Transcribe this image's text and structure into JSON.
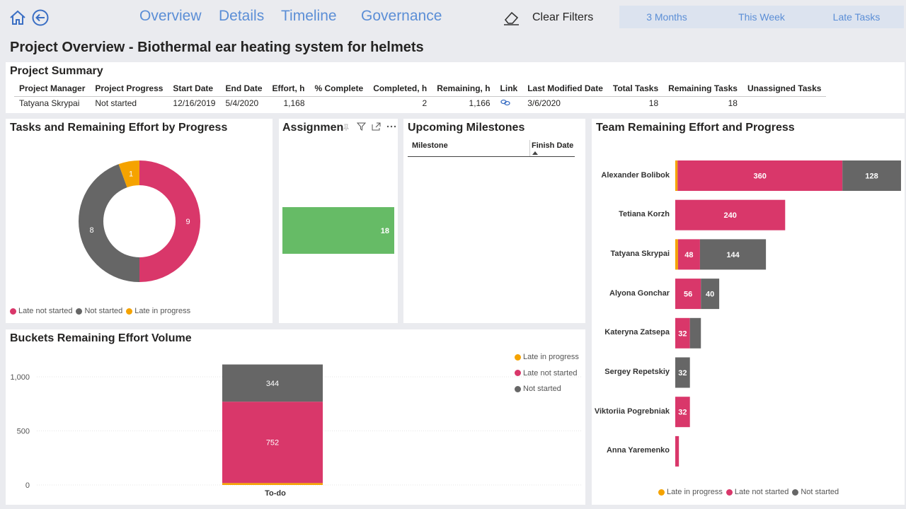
{
  "nav": {
    "tabs": [
      {
        "label": "Overview"
      },
      {
        "label": "Details"
      },
      {
        "label": "Timeline"
      },
      {
        "label": "Governance"
      }
    ],
    "clear_filters": "Clear Filters",
    "segments": [
      "3 Months",
      "This Week",
      "Late Tasks"
    ]
  },
  "page_title": "Project Overview - Biothermal ear heating system for helmets",
  "summary": {
    "title": "Project Summary",
    "columns": [
      "Project Manager",
      "Project Progress",
      "Start Date",
      "End Date",
      "Effort, h",
      "% Complete",
      "Completed, h",
      "Remaining, h",
      "Link",
      "Last Modified Date",
      "Total Tasks",
      "Remaining Tasks",
      "Unassigned Tasks"
    ],
    "row": {
      "manager": "Tatyana Skrypai",
      "progress": "Not started",
      "start": "12/16/2019",
      "end": "5/4/2020",
      "effort": "1,168",
      "pct": "",
      "completed": "2",
      "remaining": "1,166",
      "modified": "3/6/2020",
      "total": "18",
      "remaining_tasks": "18",
      "unassigned": ""
    }
  },
  "colors": {
    "late_in_progress": "#f5a300",
    "late_not_started": "#d9376a",
    "not_started": "#666666",
    "assign_green": "#66bb66",
    "nav_blue": "#5b8ed6"
  },
  "donut": {
    "title": "Tasks and Remaining Effort by Progress",
    "legend": [
      "Late not started",
      "Not started",
      "Late in progress"
    ],
    "chart_data": {
      "type": "pie",
      "categories": [
        "Late not started",
        "Not started",
        "Late in progress"
      ],
      "values": [
        9,
        8,
        1
      ]
    }
  },
  "assignments": {
    "title": "Assignmen",
    "value": "18",
    "chart_data": {
      "type": "bar",
      "values": [
        18
      ]
    }
  },
  "milestones": {
    "title": "Upcoming Milestones",
    "columns": [
      "Milestone",
      "Finish Date"
    ]
  },
  "buckets": {
    "title": "Buckets Remaining Effort Volume",
    "legend": [
      "Late in progress",
      "Late not started",
      "Not started"
    ],
    "chart_data": {
      "type": "bar",
      "categories": [
        "To-do"
      ],
      "series": [
        {
          "name": "Late in progress",
          "values": [
            18
          ]
        },
        {
          "name": "Late not started",
          "values": [
            752
          ]
        },
        {
          "name": "Not started",
          "values": [
            344
          ]
        }
      ],
      "yticks": [
        "0",
        "500",
        "1,000"
      ],
      "ylim": [
        0,
        1200
      ]
    }
  },
  "team": {
    "title": "Team Remaining Effort and Progress",
    "legend": [
      "Late in progress",
      "Late not started",
      "Not started"
    ],
    "chart_data": {
      "type": "bar",
      "categories": [
        "Alexander Bolibok",
        "Tetiana Korzh",
        "Tatyana Skrypai",
        "Alyona Gonchar",
        "Kateryna Zatsepa",
        "Sergey Repetskiy",
        "Viktoriia Pogrebniak",
        "Anna Yaremenko"
      ],
      "series": [
        {
          "name": "Late in progress",
          "values": [
            5,
            0,
            6,
            0,
            0,
            0,
            0,
            0
          ]
        },
        {
          "name": "Late not started",
          "values": [
            360,
            240,
            48,
            56,
            32,
            0,
            32,
            8
          ]
        },
        {
          "name": "Not started",
          "values": [
            128,
            0,
            144,
            40,
            24,
            32,
            0,
            0
          ]
        }
      ],
      "labels": {
        "Late not started": [
          "360",
          "240",
          "48",
          "56",
          "32",
          "",
          "32",
          ""
        ],
        "Not started": [
          "128",
          "",
          "144",
          "40",
          "",
          "32",
          "",
          ""
        ]
      }
    }
  }
}
